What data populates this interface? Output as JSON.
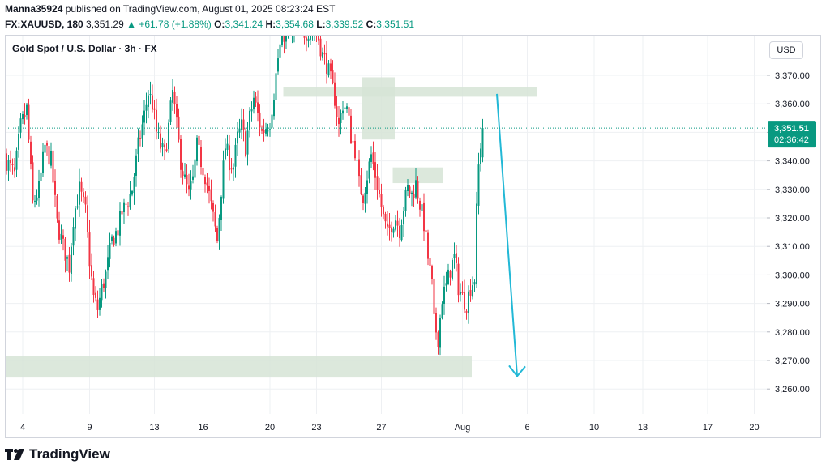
{
  "header": {
    "author": "Manna35924",
    "published_text": "published on TradingView.com, August 01, 2025 08:23:24 EST",
    "symbol": "FX:XAUUSD, 180",
    "last_price": "3,351.29",
    "change_arrow": "▲",
    "change": "+61.78 (+1.88%)",
    "o_label": "O:",
    "o_value": "3,341.24",
    "h_label": "H:",
    "h_value": "3,354.68",
    "l_label": "L:",
    "l_value": "3,339.52",
    "c_label": "C:",
    "c_value": "3,351.51"
  },
  "symbol_title": "Gold Spot / U.S. Dollar · 3h · FX",
  "currency": "USD",
  "price_badge": {
    "price": "3,351.51",
    "countdown": "02:36:42"
  },
  "footer": {
    "brand": "TradingView"
  },
  "colors": {
    "up": "#089981",
    "down": "#f23645",
    "zone": "#d6e4d6",
    "arrow": "#22b8d6",
    "price_line": "#089981"
  },
  "chart_data": {
    "type": "candlestick",
    "title": "Gold Spot / U.S. Dollar · 3h · FX",
    "ylim": [
      3252,
      3387
    ],
    "y_ticks": [
      "3,260.00",
      "3,270.00",
      "3,280.00",
      "3,290.00",
      "3,300.00",
      "3,310.00",
      "3,320.00",
      "3,330.00",
      "3,340.00",
      "3,350.00",
      "3,360.00",
      "3,370.00"
    ],
    "x_ticks": [
      {
        "label": "4",
        "bar": 8
      },
      {
        "label": "9",
        "bar": 41
      },
      {
        "label": "13",
        "bar": 73
      },
      {
        "label": "16",
        "bar": 97
      },
      {
        "label": "20",
        "bar": 130
      },
      {
        "label": "23",
        "bar": 153
      },
      {
        "label": "27",
        "bar": 185
      },
      {
        "label": "Aug",
        "bar": 225
      },
      {
        "label": "6",
        "bar": 257
      },
      {
        "label": "10",
        "bar": 290
      },
      {
        "label": "13",
        "bar": 314
      },
      {
        "label": "17",
        "bar": 346
      },
      {
        "label": "20",
        "bar": 369
      }
    ],
    "current_price": 3351.51,
    "anchors": [
      [
        0,
        3340
      ],
      [
        4,
        3335
      ],
      [
        7,
        3352
      ],
      [
        10,
        3358
      ],
      [
        13,
        3325
      ],
      [
        16,
        3330
      ],
      [
        19,
        3345
      ],
      [
        22,
        3340
      ],
      [
        25,
        3318
      ],
      [
        28,
        3310
      ],
      [
        31,
        3303
      ],
      [
        33,
        3320
      ],
      [
        36,
        3330
      ],
      [
        39,
        3322
      ],
      [
        41,
        3305
      ],
      [
        43,
        3292
      ],
      [
        45,
        3288
      ],
      [
        47,
        3295
      ],
      [
        49,
        3300
      ],
      [
        52,
        3312
      ],
      [
        55,
        3316
      ],
      [
        57,
        3322
      ],
      [
        60,
        3326
      ],
      [
        62,
        3330
      ],
      [
        65,
        3345
      ],
      [
        68,
        3356
      ],
      [
        70,
        3364
      ],
      [
        72,
        3360
      ],
      [
        74,
        3350
      ],
      [
        76,
        3345
      ],
      [
        78,
        3342
      ],
      [
        80,
        3352
      ],
      [
        82,
        3364
      ],
      [
        84,
        3352
      ],
      [
        86,
        3340
      ],
      [
        88,
        3333
      ],
      [
        90,
        3328
      ],
      [
        92,
        3333
      ],
      [
        94,
        3345
      ],
      [
        96,
        3340
      ],
      [
        98,
        3335
      ],
      [
        100,
        3328
      ],
      [
        102,
        3320
      ],
      [
        104,
        3312
      ],
      [
        106,
        3330
      ],
      [
        108,
        3345
      ],
      [
        110,
        3340
      ],
      [
        112,
        3338
      ],
      [
        114,
        3348
      ],
      [
        116,
        3352
      ],
      [
        118,
        3345
      ],
      [
        120,
        3355
      ],
      [
        122,
        3362
      ],
      [
        124,
        3356
      ],
      [
        126,
        3350
      ],
      [
        128,
        3352
      ],
      [
        130,
        3354
      ],
      [
        132,
        3364
      ],
      [
        134,
        3376
      ],
      [
        136,
        3384
      ],
      [
        138,
        3385
      ],
      [
        140,
        3384
      ],
      [
        142,
        3386
      ],
      [
        146,
        3385
      ],
      [
        150,
        3386
      ],
      [
        152,
        3387
      ],
      [
        154,
        3383
      ],
      [
        156,
        3377
      ],
      [
        158,
        3374
      ],
      [
        160,
        3368
      ],
      [
        162,
        3362
      ],
      [
        164,
        3352
      ],
      [
        166,
        3360
      ],
      [
        168,
        3358
      ],
      [
        170,
        3349
      ],
      [
        172,
        3344
      ],
      [
        174,
        3332
      ],
      [
        176,
        3328
      ],
      [
        178,
        3335
      ],
      [
        180,
        3342
      ],
      [
        182,
        3335
      ],
      [
        184,
        3328
      ],
      [
        186,
        3320
      ],
      [
        188,
        3314
      ],
      [
        190,
        3318
      ],
      [
        192,
        3320
      ],
      [
        194,
        3316
      ],
      [
        196,
        3324
      ],
      [
        198,
        3330
      ],
      [
        200,
        3328
      ],
      [
        202,
        3332
      ],
      [
        204,
        3325
      ],
      [
        206,
        3318
      ],
      [
        208,
        3306
      ],
      [
        210,
        3296
      ],
      [
        211,
        3283
      ],
      [
        213,
        3278
      ],
      [
        215,
        3292
      ],
      [
        217,
        3296
      ],
      [
        219,
        3302
      ],
      [
        221,
        3306
      ],
      [
        223,
        3296
      ],
      [
        225,
        3292
      ],
      [
        227,
        3290
      ],
      [
        229,
        3296
      ],
      [
        231,
        3299
      ],
      [
        232,
        3322
      ],
      [
        233,
        3338
      ],
      [
        234,
        3346
      ],
      [
        235,
        3351.51
      ]
    ],
    "zones": [
      {
        "x0": 0,
        "x1": 230,
        "y_low": 3264.0,
        "y_high": 3271.5
      },
      {
        "x0": 137,
        "x1": 262,
        "y_low": 3362.5,
        "y_high": 3365.8
      },
      {
        "x0": 176,
        "x1": 192,
        "y_low": 3347.5,
        "y_high": 3369.3
      },
      {
        "x0": 191,
        "x1": 216,
        "y_low": 3332.2,
        "y_high": 3337.7
      }
    ],
    "projection_arrow": {
      "from_bar": 242,
      "from_price": 3363.5,
      "to_bar": 252,
      "to_price": 3264.5
    }
  }
}
